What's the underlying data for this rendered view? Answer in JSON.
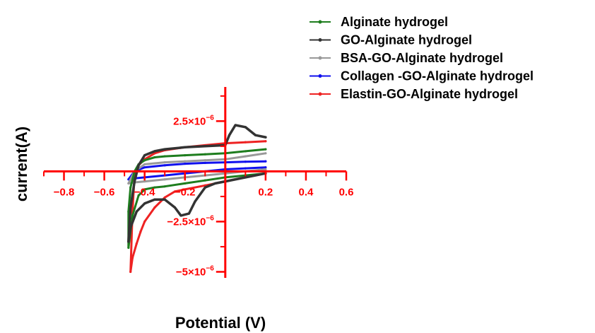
{
  "chart_data": {
    "type": "line",
    "title": "",
    "xlabel": "Potential (V)",
    "ylabel": "current(A)",
    "xlim": [
      -0.9,
      0.6
    ],
    "ylim": [
      -5.3e-06,
      4.2e-06
    ],
    "axis_color": "#ff0000",
    "grid": false,
    "legend_position": "top-right",
    "x_ticks": [
      {
        "value": -0.8,
        "label": "−0.8"
      },
      {
        "value": -0.6,
        "label": "−0.6"
      },
      {
        "value": -0.4,
        "label": "−0.4"
      },
      {
        "value": -0.2,
        "label": "−0.2"
      },
      {
        "value": 0.2,
        "label": "0.2"
      },
      {
        "value": 0.4,
        "label": "0.4"
      },
      {
        "value": 0.6,
        "label": "0.6"
      }
    ],
    "y_ticks": [
      {
        "value": 2.5e-06,
        "label": "2.5×10",
        "exp": "−6"
      },
      {
        "value": -2.5e-06,
        "label": "−2.5×10",
        "exp": "−6"
      },
      {
        "value": -5e-06,
        "label": "−5×10",
        "exp": "−6"
      }
    ],
    "series": [
      {
        "name": "Alginate hydrogel",
        "color": "#1e7d1e",
        "x": [
          0.2,
          0.1,
          0.0,
          -0.1,
          -0.2,
          -0.3,
          -0.35,
          -0.4,
          -0.43,
          -0.45,
          -0.47,
          -0.48,
          -0.48,
          -0.46,
          -0.43,
          -0.4,
          -0.35,
          -0.3,
          -0.2,
          -0.1,
          0.0,
          0.1,
          0.2
        ],
        "y": [
          1.1e-06,
          1e-06,
          9e-07,
          8.5e-07,
          8e-07,
          7.5e-07,
          7e-07,
          5.5e-07,
          3.5e-07,
          0.0,
          -8e-07,
          -2e-06,
          -3.8e-06,
          -2.2e-06,
          -1.2e-06,
          -9e-07,
          -8e-07,
          -7.5e-07,
          -6e-07,
          -4.5e-07,
          -3e-07,
          -2e-07,
          -1e-07
        ]
      },
      {
        "name": "GO-Alginate hydrogel",
        "color": "#333333",
        "x": [
          0.2,
          0.15,
          0.1,
          0.05,
          0.02,
          0.0,
          -0.1,
          -0.2,
          -0.3,
          -0.35,
          -0.4,
          -0.43,
          -0.45,
          -0.47,
          -0.48,
          -0.47,
          -0.44,
          -0.4,
          -0.35,
          -0.3,
          -0.25,
          -0.22,
          -0.18,
          -0.15,
          -0.1,
          -0.05,
          0.0,
          0.1,
          0.2
        ],
        "y": [
          1.7e-06,
          1.8e-06,
          2.2e-06,
          2.3e-06,
          1.8e-06,
          1.3e-06,
          1.25e-06,
          1.2e-06,
          1.1e-06,
          1e-06,
          8e-07,
          3e-07,
          -5e-07,
          -1.8e-06,
          -3.5e-06,
          -2.8e-06,
          -2e-06,
          -1.6e-06,
          -1.4e-06,
          -1.4e-06,
          -1.8e-06,
          -2.2e-06,
          -2.1e-06,
          -1.5e-06,
          -8e-07,
          -6e-07,
          -5e-07,
          -3e-07,
          -1e-07
        ]
      },
      {
        "name": "BSA-GO-Alginate hydrogel",
        "color": "#999999",
        "x": [
          0.2,
          0.1,
          0.0,
          -0.1,
          -0.2,
          -0.3,
          -0.4,
          -0.45,
          -0.48,
          -0.45,
          -0.4,
          -0.3,
          -0.2,
          -0.1,
          0.0,
          0.1,
          0.2
        ],
        "y": [
          9e-07,
          7.5e-07,
          6e-07,
          5.5e-07,
          5e-07,
          4.5e-07,
          3.5e-07,
          0.0,
          -6e-07,
          -5.5e-07,
          -5e-07,
          -4e-07,
          -3e-07,
          -2e-07,
          -1e-07,
          0.0,
          1e-07
        ]
      },
      {
        "name": "Collagen -GO-Alginate hydrogel",
        "color": "#1010ee",
        "x": [
          0.2,
          0.1,
          0.0,
          -0.1,
          -0.2,
          -0.3,
          -0.4,
          -0.45,
          -0.48,
          -0.45,
          -0.4,
          -0.3,
          -0.2,
          -0.1,
          0.0,
          0.1,
          0.2
        ],
        "y": [
          5e-07,
          4.8e-07,
          4.5e-07,
          4.2e-07,
          3.8e-07,
          3e-07,
          2e-07,
          0.0,
          -4e-07,
          -3.5e-07,
          -3e-07,
          -2e-07,
          -1e-07,
          0.0,
          1e-07,
          1.5e-07,
          2e-07
        ]
      },
      {
        "name": "Elastin-GO-Alginate hydrogel",
        "color": "#ee2222",
        "x": [
          0.2,
          0.1,
          0.0,
          -0.1,
          -0.2,
          -0.3,
          -0.35,
          -0.4,
          -0.43,
          -0.45,
          -0.46,
          -0.47,
          -0.46,
          -0.44,
          -0.42,
          -0.4,
          -0.35,
          -0.3,
          -0.25,
          -0.2,
          -0.1,
          0.0,
          0.1,
          0.2
        ],
        "y": [
          1.5e-06,
          1.45e-06,
          1.4e-06,
          1.3e-06,
          1.2e-06,
          1.05e-06,
          9e-07,
          6e-07,
          3e-07,
          -2e-07,
          -2e-06,
          -5e-06,
          -4.3e-06,
          -3.6e-06,
          -3e-06,
          -2.5e-06,
          -1.8e-06,
          -1.3e-06,
          -1e-06,
          -9e-07,
          -7e-07,
          -5e-07,
          -3e-07,
          -1e-07
        ]
      }
    ]
  }
}
